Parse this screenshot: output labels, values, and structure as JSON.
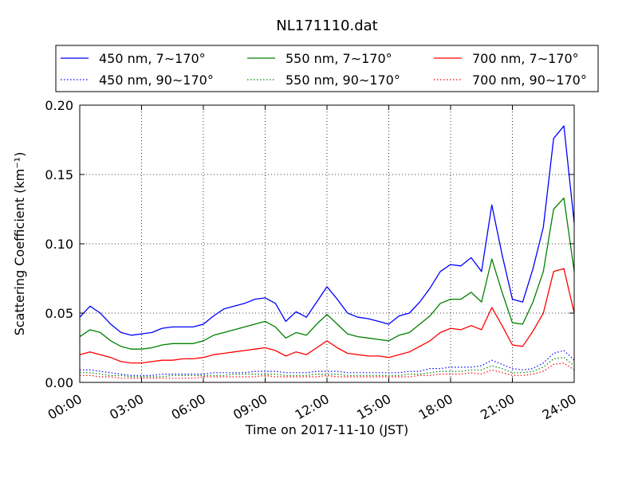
{
  "chart_data": {
    "type": "line",
    "title": "NL171110.dat",
    "xlabel": "Time on 2017-11-10 (JST)",
    "ylabel": "Scattering Coefficient (km⁻¹)",
    "xlim": [
      "00:00",
      "24:00"
    ],
    "ylim": [
      0,
      0.2
    ],
    "x_ticks": [
      "00:00",
      "03:00",
      "06:00",
      "09:00",
      "12:00",
      "15:00",
      "18:00",
      "21:00",
      "24:00"
    ],
    "y_ticks": [
      "0.00",
      "0.05",
      "0.10",
      "0.15",
      "0.20"
    ],
    "grid": true,
    "legend_position": "top",
    "x": [
      "00:00",
      "00:30",
      "01:00",
      "01:30",
      "02:00",
      "02:30",
      "03:00",
      "03:30",
      "04:00",
      "04:30",
      "05:00",
      "05:30",
      "06:00",
      "06:30",
      "07:00",
      "07:30",
      "08:00",
      "08:30",
      "09:00",
      "09:30",
      "10:00",
      "10:30",
      "11:00",
      "11:30",
      "12:00",
      "12:30",
      "13:00",
      "13:30",
      "14:00",
      "14:30",
      "15:00",
      "15:30",
      "16:00",
      "16:30",
      "17:00",
      "17:30",
      "18:00",
      "18:30",
      "19:00",
      "19:30",
      "20:00",
      "20:30",
      "21:00",
      "21:30",
      "22:00",
      "22:30",
      "23:00",
      "23:30",
      "24:00"
    ],
    "series": [
      {
        "name": "450 nm, 7∼170°",
        "color": "#0000ff",
        "style": "solid",
        "values": [
          0.047,
          0.055,
          0.05,
          0.042,
          0.036,
          0.034,
          0.035,
          0.036,
          0.039,
          0.04,
          0.04,
          0.04,
          0.042,
          0.048,
          0.053,
          0.055,
          0.057,
          0.06,
          0.061,
          0.057,
          0.044,
          0.051,
          0.047,
          0.058,
          0.069,
          0.06,
          0.05,
          0.047,
          0.046,
          0.044,
          0.042,
          0.048,
          0.05,
          0.058,
          0.068,
          0.08,
          0.085,
          0.084,
          0.09,
          0.08,
          0.128,
          0.092,
          0.06,
          0.058,
          0.082,
          0.112,
          0.176,
          0.185,
          0.115
        ]
      },
      {
        "name": "450 nm, 90∼170°",
        "color": "#0000ff",
        "style": "dotted",
        "values": [
          0.009,
          0.009,
          0.008,
          0.007,
          0.006,
          0.005,
          0.005,
          0.005,
          0.006,
          0.006,
          0.006,
          0.006,
          0.006,
          0.007,
          0.007,
          0.007,
          0.007,
          0.008,
          0.008,
          0.008,
          0.007,
          0.007,
          0.007,
          0.008,
          0.008,
          0.008,
          0.007,
          0.007,
          0.007,
          0.007,
          0.007,
          0.007,
          0.008,
          0.008,
          0.01,
          0.01,
          0.011,
          0.011,
          0.011,
          0.012,
          0.016,
          0.013,
          0.01,
          0.009,
          0.01,
          0.014,
          0.021,
          0.023,
          0.016
        ]
      },
      {
        "name": "550 nm, 7∼170°",
        "color": "#008000",
        "style": "solid",
        "values": [
          0.033,
          0.038,
          0.036,
          0.03,
          0.026,
          0.024,
          0.024,
          0.025,
          0.027,
          0.028,
          0.028,
          0.028,
          0.03,
          0.034,
          0.036,
          0.038,
          0.04,
          0.042,
          0.044,
          0.04,
          0.032,
          0.036,
          0.034,
          0.042,
          0.049,
          0.042,
          0.035,
          0.033,
          0.032,
          0.031,
          0.03,
          0.034,
          0.036,
          0.042,
          0.048,
          0.057,
          0.06,
          0.06,
          0.065,
          0.058,
          0.089,
          0.065,
          0.043,
          0.042,
          0.058,
          0.08,
          0.125,
          0.133,
          0.08
        ]
      },
      {
        "name": "550 nm, 90∼170°",
        "color": "#008000",
        "style": "dotted",
        "values": [
          0.007,
          0.007,
          0.006,
          0.005,
          0.005,
          0.004,
          0.004,
          0.004,
          0.004,
          0.005,
          0.005,
          0.005,
          0.005,
          0.005,
          0.005,
          0.006,
          0.006,
          0.006,
          0.006,
          0.006,
          0.005,
          0.005,
          0.005,
          0.006,
          0.006,
          0.006,
          0.005,
          0.005,
          0.005,
          0.005,
          0.005,
          0.005,
          0.006,
          0.006,
          0.007,
          0.008,
          0.008,
          0.008,
          0.009,
          0.009,
          0.012,
          0.01,
          0.007,
          0.007,
          0.008,
          0.011,
          0.017,
          0.018,
          0.012
        ]
      },
      {
        "name": "700 nm, 7∼170°",
        "color": "#ff0000",
        "style": "solid",
        "values": [
          0.02,
          0.022,
          0.02,
          0.018,
          0.015,
          0.014,
          0.014,
          0.015,
          0.016,
          0.016,
          0.017,
          0.017,
          0.018,
          0.02,
          0.021,
          0.022,
          0.023,
          0.024,
          0.025,
          0.023,
          0.019,
          0.022,
          0.02,
          0.025,
          0.03,
          0.025,
          0.021,
          0.02,
          0.019,
          0.019,
          0.018,
          0.02,
          0.022,
          0.026,
          0.03,
          0.036,
          0.039,
          0.038,
          0.041,
          0.038,
          0.054,
          0.041,
          0.027,
          0.026,
          0.037,
          0.05,
          0.08,
          0.082,
          0.05
        ]
      },
      {
        "name": "700 nm, 90∼170°",
        "color": "#ff0000",
        "style": "dotted",
        "values": [
          0.005,
          0.005,
          0.004,
          0.004,
          0.003,
          0.003,
          0.003,
          0.003,
          0.003,
          0.003,
          0.003,
          0.003,
          0.004,
          0.004,
          0.004,
          0.004,
          0.004,
          0.004,
          0.005,
          0.004,
          0.004,
          0.004,
          0.004,
          0.004,
          0.005,
          0.004,
          0.004,
          0.004,
          0.004,
          0.004,
          0.004,
          0.004,
          0.004,
          0.005,
          0.005,
          0.006,
          0.006,
          0.006,
          0.007,
          0.006,
          0.009,
          0.007,
          0.005,
          0.005,
          0.006,
          0.008,
          0.013,
          0.014,
          0.009
        ]
      }
    ]
  }
}
